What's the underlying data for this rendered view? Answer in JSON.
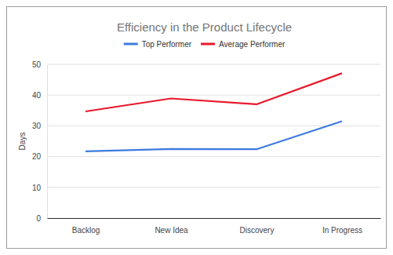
{
  "chart_data": {
    "type": "line",
    "title": "Efficiency in the Product Lifecycle",
    "ylabel": "Days",
    "categories": [
      "Backlog",
      "New Idea",
      "Discovery",
      "In Progress"
    ],
    "series": [
      {
        "name": "Top Performer",
        "color": "#3d7be0",
        "values": [
          21.7,
          22.5,
          22.4,
          31.5
        ]
      },
      {
        "name": "Average Performer",
        "color": "#e8192c",
        "values": [
          34.7,
          38.9,
          37.0,
          47.1
        ]
      }
    ],
    "ylim": [
      0,
      50
    ],
    "yticks": [
      0,
      10,
      20,
      30,
      40,
      50
    ],
    "grid": true,
    "legend": "top"
  }
}
